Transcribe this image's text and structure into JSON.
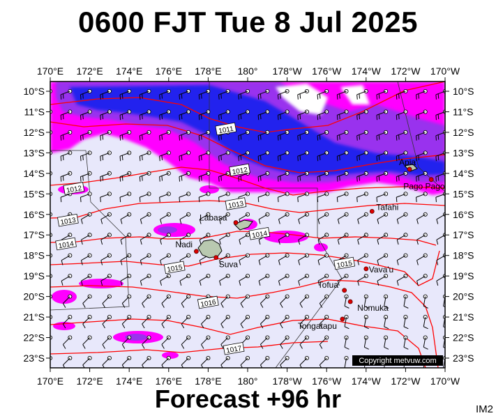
{
  "title": "0600 FJT Tue 8 Jul 2025",
  "footer": "Forecast +96 hr",
  "image_tag": "IM2",
  "copyright": "Copyright metvuw.com",
  "map": {
    "lon_labels": [
      "170°E",
      "172°E",
      "174°E",
      "176°E",
      "178°E",
      "180°",
      "178°W",
      "176°W",
      "174°W",
      "172°W",
      "170°W"
    ],
    "lat_labels": [
      "10°S",
      "11°S",
      "12°S",
      "13°S",
      "14°S",
      "15°S",
      "16°S",
      "17°S",
      "18°S",
      "19°S",
      "20°S",
      "21°S",
      "22°S",
      "23°S"
    ],
    "places": [
      {
        "name": "Apia",
        "lon": -171.8,
        "lat": -13.8
      },
      {
        "name": "Pago Pago",
        "lon": -170.7,
        "lat": -14.3
      },
      {
        "name": "Tafahi",
        "lon": -173.7,
        "lat": -15.85
      },
      {
        "name": "Labasa",
        "lon": 179.4,
        "lat": -16.4
      },
      {
        "name": "Nadi",
        "lon": 177.4,
        "lat": -17.8
      },
      {
        "name": "Suva",
        "lon": 178.4,
        "lat": -18.1
      },
      {
        "name": "Vava'u",
        "lon": -174.0,
        "lat": -18.65
      },
      {
        "name": "Tofua",
        "lon": -175.1,
        "lat": -19.7
      },
      {
        "name": "Nomuka",
        "lon": -174.8,
        "lat": -20.25
      },
      {
        "name": "Tongatapu",
        "lon": -175.2,
        "lat": -21.1
      }
    ],
    "isobars": [
      {
        "label": "1011",
        "lon": 178.9,
        "lat": -11.85
      },
      {
        "label": "1012",
        "lon": 179.6,
        "lat": -13.85
      },
      {
        "label": "1012",
        "lon": 171.2,
        "lat": -14.75
      },
      {
        "label": "1013",
        "lon": 170.9,
        "lat": -16.3
      },
      {
        "label": "1013",
        "lon": 179.4,
        "lat": -15.5
      },
      {
        "label": "1014",
        "lon": 180.6,
        "lat": -16.95
      },
      {
        "label": "1014",
        "lon": 170.8,
        "lat": -17.45
      },
      {
        "label": "1015",
        "lon": 176.3,
        "lat": -18.6
      },
      {
        "label": "1015",
        "lon": -175.1,
        "lat": -18.4
      },
      {
        "label": "1016",
        "lon": 178.0,
        "lat": -20.3
      },
      {
        "label": "1017",
        "lon": 179.3,
        "lat": -22.55
      }
    ],
    "colors": {
      "background": "#e8e8fb",
      "rain_light": "#ff00ff",
      "rain_moderate": "#9933ee",
      "rain_heavy": "#2222ee",
      "isobar": "#ff0000",
      "land": "#b9c9b0"
    }
  }
}
